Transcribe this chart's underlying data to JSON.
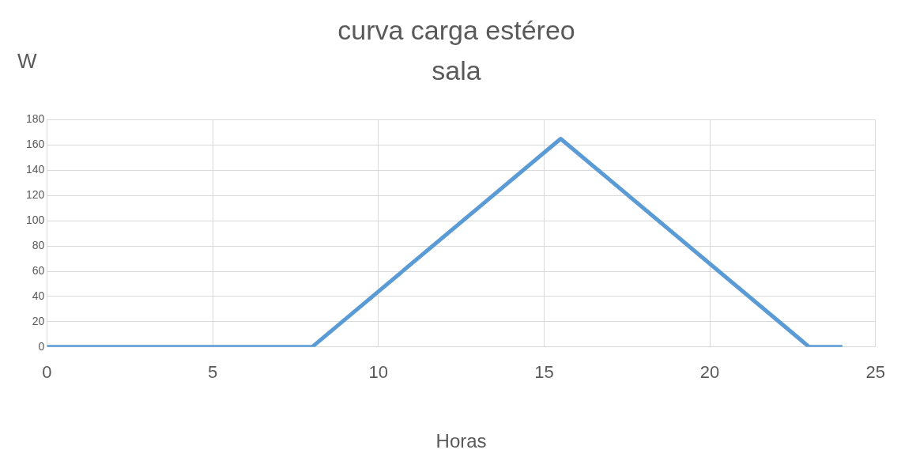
{
  "chart_data": {
    "type": "line",
    "title": "curva carga estéreo",
    "subtitle": "sala",
    "xlabel": "Horas",
    "ylabel": "W",
    "x": [
      0,
      8,
      15.5,
      23,
      24
    ],
    "series": [
      {
        "color": "#5b9bd5",
        "values": [
          0,
          0,
          165,
          0,
          0
        ]
      }
    ],
    "xlim": [
      0,
      25
    ],
    "xticks": [
      0,
      5,
      10,
      15,
      20,
      25
    ],
    "ylim": [
      0,
      180
    ],
    "yticks": [
      0,
      20,
      40,
      60,
      80,
      100,
      120,
      140,
      160,
      180
    ],
    "grid": true,
    "legend": false,
    "marker": "none",
    "line_style": "solid"
  }
}
